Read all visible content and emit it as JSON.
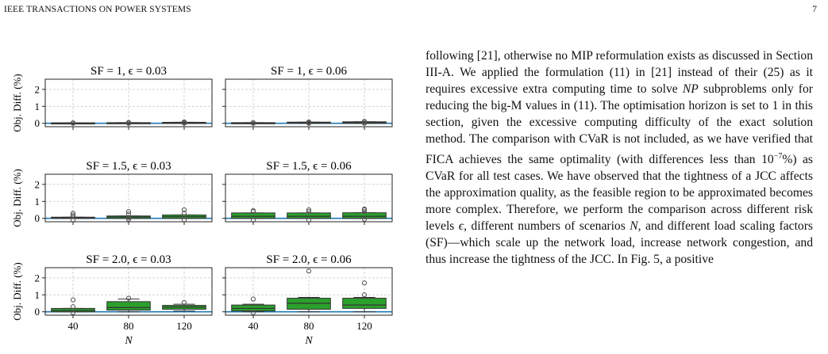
{
  "header": {
    "journal": "IEEE TRANSACTIONS ON POWER SYSTEMS",
    "page_number": "7"
  },
  "figure": {
    "ylabel": "Obj. Diff. (%)",
    "xlabel": "N",
    "colors": {
      "box_fill": "#2ca02c",
      "baseline": "#1f77b4",
      "grid": "#c8c8c8",
      "outlier": "#555555"
    }
  },
  "chart_data": [
    {
      "type": "box",
      "title": "SF = 1, ϵ = 0.03",
      "x": [
        "40",
        "80",
        "120"
      ],
      "ylim": [
        -0.2,
        2.6
      ],
      "yticks": [
        0,
        1,
        2
      ],
      "boxes": [
        {
          "q1": 0.0,
          "median": 0.01,
          "q3": 0.03,
          "whisker_low": 0.0,
          "whisker_high": 0.03,
          "outliers": [
            0.0,
            0.03
          ]
        },
        {
          "q1": 0.0,
          "median": 0.02,
          "q3": 0.04,
          "whisker_low": 0.0,
          "whisker_high": 0.04,
          "outliers": [
            0.0,
            0.03,
            0.05
          ]
        },
        {
          "q1": 0.0,
          "median": 0.03,
          "q3": 0.06,
          "whisker_low": 0.0,
          "whisker_high": 0.06,
          "outliers": [
            0.0,
            0.04,
            0.08
          ]
        }
      ]
    },
    {
      "type": "box",
      "title": "SF = 1, ϵ = 0.06",
      "x": [
        "40",
        "80",
        "120"
      ],
      "ylim": [
        -0.2,
        2.6
      ],
      "yticks": [
        0,
        1,
        2
      ],
      "boxes": [
        {
          "q1": 0.0,
          "median": 0.01,
          "q3": 0.04,
          "whisker_low": 0.0,
          "whisker_high": 0.04,
          "outliers": [
            0.0,
            0.04
          ]
        },
        {
          "q1": 0.0,
          "median": 0.03,
          "q3": 0.07,
          "whisker_low": 0.0,
          "whisker_high": 0.07,
          "outliers": [
            0.0,
            0.04,
            0.08
          ]
        },
        {
          "q1": 0.0,
          "median": 0.04,
          "q3": 0.09,
          "whisker_low": 0.0,
          "whisker_high": 0.09,
          "outliers": [
            0.0,
            0.05,
            0.12
          ]
        }
      ]
    },
    {
      "type": "box",
      "title": "SF = 1.5, ϵ = 0.03",
      "x": [
        "40",
        "80",
        "120"
      ],
      "ylim": [
        -0.2,
        2.6
      ],
      "yticks": [
        0,
        1,
        2
      ],
      "boxes": [
        {
          "q1": 0.0,
          "median": 0.03,
          "q3": 0.07,
          "whisker_low": 0.0,
          "whisker_high": 0.07,
          "outliers": [
            -0.1,
            0.1,
            0.2,
            0.3
          ]
        },
        {
          "q1": 0.0,
          "median": 0.08,
          "q3": 0.14,
          "whisker_low": 0.0,
          "whisker_high": 0.14,
          "outliers": [
            -0.05,
            0.05,
            0.25,
            0.4
          ]
        },
        {
          "q1": 0.0,
          "median": 0.1,
          "q3": 0.2,
          "whisker_low": 0.0,
          "whisker_high": 0.2,
          "outliers": [
            -0.1,
            0.1,
            0.3,
            0.5
          ]
        }
      ]
    },
    {
      "type": "box",
      "title": "SF = 1.5, ϵ = 0.06",
      "x": [
        "40",
        "80",
        "120"
      ],
      "ylim": [
        -0.2,
        2.6
      ],
      "yticks": [
        0,
        1,
        2
      ],
      "boxes": [
        {
          "q1": 0.0,
          "median": 0.12,
          "q3": 0.32,
          "whisker_low": 0.0,
          "whisker_high": 0.32,
          "outliers": [
            -0.1,
            0.4,
            0.45
          ]
        },
        {
          "q1": 0.0,
          "median": 0.12,
          "q3": 0.32,
          "whisker_low": 0.0,
          "whisker_high": 0.32,
          "outliers": [
            -0.1,
            0.4,
            0.5
          ]
        },
        {
          "q1": 0.0,
          "median": 0.12,
          "q3": 0.33,
          "whisker_low": 0.0,
          "whisker_high": 0.33,
          "outliers": [
            -0.05,
            0.4,
            0.5,
            0.55
          ]
        }
      ]
    },
    {
      "type": "box",
      "title": "SF = 2.0, ϵ = 0.03",
      "x": [
        "40",
        "80",
        "120"
      ],
      "ylim": [
        -0.2,
        2.6
      ],
      "yticks": [
        0,
        1,
        2
      ],
      "boxes": [
        {
          "q1": 0.0,
          "median": 0.08,
          "q3": 0.2,
          "whisker_low": 0.0,
          "whisker_high": 0.2,
          "outliers": [
            -0.05,
            0.3,
            0.7
          ]
        },
        {
          "q1": 0.1,
          "median": 0.25,
          "q3": 0.6,
          "whisker_low": 0.0,
          "whisker_high": 0.75,
          "outliers": [
            0.8
          ]
        },
        {
          "q1": 0.15,
          "median": 0.28,
          "q3": 0.38,
          "whisker_low": 0.05,
          "whisker_high": 0.45,
          "outliers": [
            0.55
          ]
        }
      ]
    },
    {
      "type": "box",
      "title": "SF = 2.0, ϵ = 0.06",
      "x": [
        "40",
        "80",
        "120"
      ],
      "ylim": [
        -0.2,
        2.6
      ],
      "yticks": [
        0,
        1,
        2
      ],
      "boxes": [
        {
          "q1": 0.05,
          "median": 0.2,
          "q3": 0.4,
          "whisker_low": 0.0,
          "whisker_high": 0.45,
          "outliers": [
            -0.05,
            0.75
          ]
        },
        {
          "q1": 0.15,
          "median": 0.5,
          "q3": 0.8,
          "whisker_low": 0.0,
          "whisker_high": 0.85,
          "outliers": [
            2.4
          ]
        },
        {
          "q1": 0.2,
          "median": 0.4,
          "q3": 0.8,
          "whisker_low": 0.0,
          "whisker_high": 0.85,
          "outliers": [
            1.0,
            1.7
          ]
        }
      ]
    }
  ],
  "body_text": {
    "p1": "following [21], otherwise no MIP reformulation exists as discussed in Section III-A. We applied the formulation (11) in [21] instead of their (25) as it requires excessive extra computing time to solve ",
    "np": "NP",
    "p2": " subproblems only for reducing the big-M values in (11). The optimisation horizon is set to 1 in this section, given the excessive computing difficulty of the exact solution method. The comparison with CVaR is not included, as we have verified that FICA achieves the same optimality (with differences less than 10",
    "exp": "−7",
    "p3": "%) as CVaR for all test cases. We have observed that the tightness of a JCC affects the approximation quality, as the feasible region to be approximated becomes more complex. Therefore, we perform the comparison across different risk levels ",
    "eps": "ϵ",
    "p4": ", different numbers of scenarios ",
    "n": "N",
    "p5": ", and different load scaling factors (SF)—which scale up the network load, increase network congestion, and thus increase the tightness of the JCC. In Fig. 5, a positive"
  }
}
